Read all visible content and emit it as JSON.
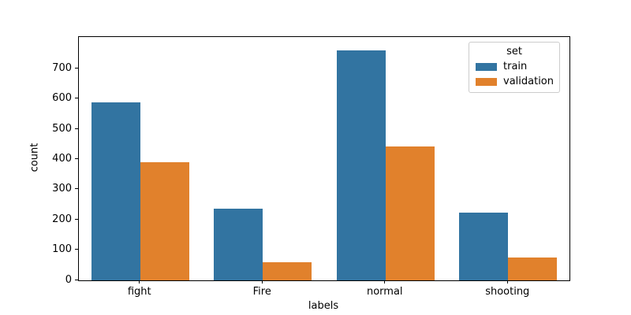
{
  "chart_data": {
    "type": "bar",
    "categories": [
      "fight",
      "Fire",
      "normal",
      "shooting"
    ],
    "series": [
      {
        "name": "train",
        "color": "#3274a1",
        "values": [
          588,
          238,
          760,
          225
        ]
      },
      {
        "name": "validation",
        "color": "#e1812c",
        "values": [
          390,
          61,
          444,
          76
        ]
      }
    ],
    "title": "",
    "xlabel": "labels",
    "ylabel": "count",
    "ylim": [
      0,
      805
    ],
    "yticks": [
      0,
      100,
      200,
      300,
      400,
      500,
      600,
      700
    ],
    "legend": {
      "title": "set",
      "position": "upper right"
    },
    "grid": false,
    "background": "#ffffff",
    "spine_color": "#000000"
  }
}
